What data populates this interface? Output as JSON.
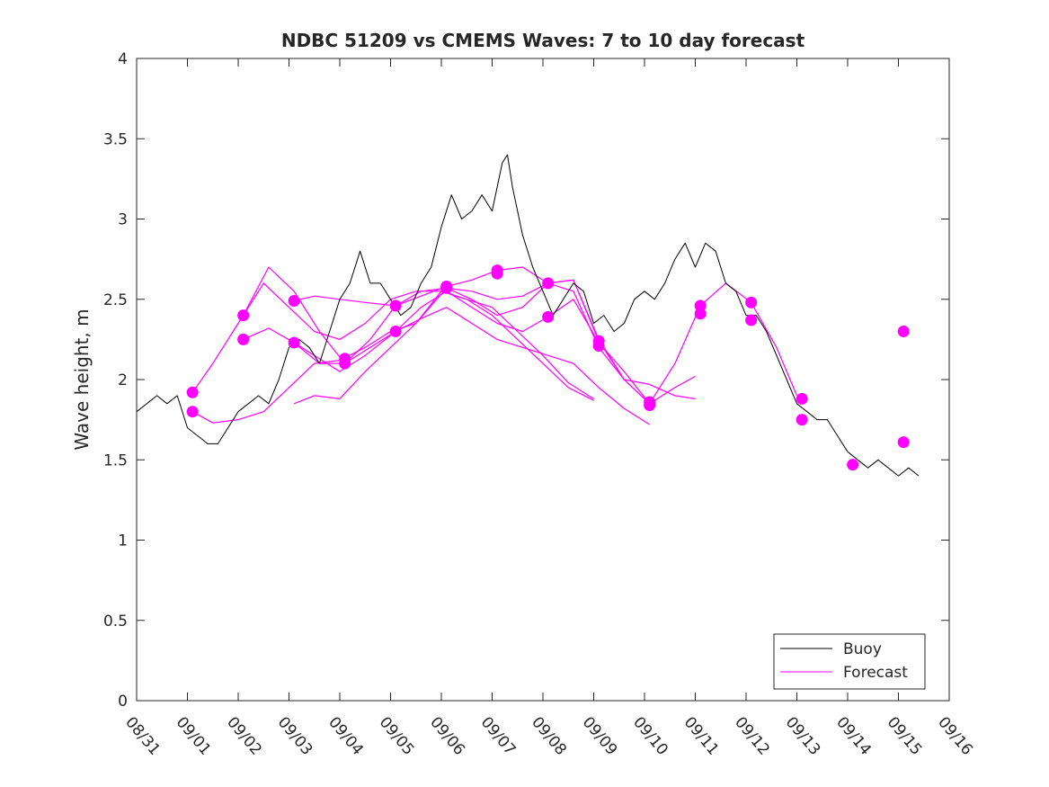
{
  "chart_data": {
    "type": "line",
    "title": "NDBC 51209 vs CMEMS Waves: 7 to 10 day forecast",
    "xlabel": "",
    "ylabel": "Wave height, m",
    "ylim": [
      0,
      4
    ],
    "yticks": [
      0,
      0.5,
      1,
      1.5,
      2,
      2.5,
      3,
      3.5,
      4
    ],
    "ytick_labels": [
      "0",
      "0.5",
      "1",
      "1.5",
      "2",
      "2.5",
      "3",
      "3.5",
      "4"
    ],
    "xlim_days": [
      0,
      16
    ],
    "xtick_labels": [
      "08/31",
      "09/01",
      "09/02",
      "09/03",
      "09/04",
      "09/05",
      "09/06",
      "09/07",
      "09/08",
      "09/09",
      "09/10",
      "09/11",
      "09/12",
      "09/13",
      "09/14",
      "09/15",
      "09/16"
    ],
    "legend": {
      "placement": "bottom-right",
      "entries": [
        {
          "label": "Buoy",
          "color": "#000000"
        },
        {
          "label": "Forecast",
          "color": "#ff00ff"
        }
      ]
    },
    "buoy": {
      "name": "Buoy",
      "color": "#000000",
      "x_days": [
        0.0,
        0.2,
        0.4,
        0.6,
        0.8,
        1.0,
        1.2,
        1.4,
        1.6,
        1.8,
        2.0,
        2.2,
        2.4,
        2.6,
        2.8,
        3.0,
        3.2,
        3.4,
        3.6,
        3.8,
        4.0,
        4.2,
        4.4,
        4.6,
        4.8,
        5.0,
        5.2,
        5.4,
        5.6,
        5.8,
        6.0,
        6.2,
        6.4,
        6.6,
        6.8,
        7.0,
        7.2,
        7.3,
        7.4,
        7.6,
        7.8,
        8.0,
        8.2,
        8.4,
        8.6,
        8.8,
        9.0,
        9.2,
        9.4,
        9.6,
        9.8,
        10.0,
        10.2,
        10.4,
        10.6,
        10.8,
        11.0,
        11.2,
        11.4,
        11.6,
        11.8,
        12.0,
        12.2,
        12.4,
        12.6,
        12.8,
        13.0,
        13.2,
        13.4,
        13.6,
        13.8,
        14.0,
        14.2,
        14.4,
        14.6,
        14.8,
        15.0,
        15.2,
        15.4
      ],
      "values": [
        1.8,
        1.85,
        1.9,
        1.85,
        1.9,
        1.7,
        1.65,
        1.6,
        1.6,
        1.7,
        1.8,
        1.85,
        1.9,
        1.85,
        2.0,
        2.2,
        2.25,
        2.2,
        2.1,
        2.3,
        2.5,
        2.6,
        2.8,
        2.6,
        2.6,
        2.5,
        2.4,
        2.45,
        2.6,
        2.7,
        2.95,
        3.15,
        3.0,
        3.05,
        3.15,
        3.05,
        3.35,
        3.4,
        3.2,
        2.9,
        2.7,
        2.55,
        2.4,
        2.5,
        2.6,
        2.55,
        2.35,
        2.4,
        2.3,
        2.35,
        2.5,
        2.55,
        2.5,
        2.6,
        2.75,
        2.85,
        2.7,
        2.85,
        2.8,
        2.6,
        2.55,
        2.4,
        2.4,
        2.3,
        2.15,
        2.0,
        1.85,
        1.8,
        1.75,
        1.75,
        1.65,
        1.55,
        1.5,
        1.45,
        1.5,
        1.45,
        1.4,
        1.45,
        1.4
      ]
    },
    "forecast": {
      "name": "Forecast",
      "color": "#ff00ff",
      "series": [
        {
          "x_days": [
            1.1,
            1.5,
            2.0,
            2.5,
            3.0,
            3.5,
            4.0,
            4.5,
            5.0,
            5.5,
            6.0,
            6.5,
            7.0,
            7.5,
            8.0,
            8.5,
            9.0
          ],
          "values": [
            1.92,
            2.1,
            2.35,
            2.6,
            2.45,
            2.3,
            2.25,
            2.35,
            2.5,
            2.55,
            2.55,
            2.5,
            2.4,
            2.25,
            2.1,
            1.95,
            1.87
          ]
        },
        {
          "x_days": [
            1.1,
            1.5,
            2.0,
            2.5,
            3.0,
            3.5,
            4.0,
            4.5,
            5.0,
            5.5,
            6.0,
            6.5,
            7.0,
            7.5,
            8.0,
            8.5,
            9.0
          ],
          "values": [
            1.8,
            1.73,
            1.75,
            1.8,
            1.95,
            2.1,
            2.12,
            2.2,
            2.3,
            2.35,
            2.55,
            2.5,
            2.45,
            2.3,
            2.15,
            1.98,
            1.88
          ]
        },
        {
          "x_days": [
            2.1,
            2.6,
            3.1,
            3.6,
            4.1,
            4.6,
            5.1,
            5.6,
            6.1,
            6.6,
            7.1,
            7.6,
            8.1,
            8.6,
            9.1,
            9.6,
            10.1
          ],
          "values": [
            2.4,
            2.7,
            2.55,
            2.3,
            2.1,
            2.25,
            2.46,
            2.55,
            2.57,
            2.55,
            2.5,
            2.52,
            2.6,
            2.62,
            2.25,
            2.0,
            1.85
          ]
        },
        {
          "x_days": [
            2.1,
            2.6,
            3.1,
            3.6,
            4.1,
            4.6,
            5.1,
            5.6,
            6.1,
            6.6,
            7.1,
            7.6,
            8.1,
            8.6,
            9.1,
            9.6,
            10.1
          ],
          "values": [
            2.25,
            2.32,
            2.23,
            2.1,
            2.1,
            2.2,
            2.3,
            2.38,
            2.45,
            2.35,
            2.25,
            2.2,
            2.15,
            2.1,
            1.95,
            1.82,
            1.72
          ]
        },
        {
          "x_days": [
            3.1,
            3.5,
            4.0,
            4.5,
            5.1,
            5.6,
            6.1,
            6.6,
            7.1,
            7.6,
            8.1,
            8.6,
            9.1,
            9.6,
            10.1,
            10.6,
            11.0
          ],
          "values": [
            2.49,
            2.52,
            2.5,
            2.48,
            2.46,
            2.52,
            2.58,
            2.62,
            2.68,
            2.7,
            2.6,
            2.55,
            2.2,
            2.0,
            1.97,
            1.9,
            1.88
          ]
        },
        {
          "x_days": [
            3.1,
            3.5,
            4.0,
            4.5,
            5.1,
            5.6,
            6.1,
            6.6,
            7.1,
            7.6,
            8.1,
            8.6,
            9.1,
            9.6,
            10.1,
            10.6,
            11.0
          ],
          "values": [
            2.23,
            2.15,
            2.05,
            2.15,
            2.3,
            2.45,
            2.55,
            2.45,
            2.35,
            2.3,
            2.39,
            2.5,
            2.23,
            2.05,
            1.85,
            1.95,
            2.02
          ]
        },
        {
          "x_days": [
            3.1,
            3.5,
            4.0,
            4.5,
            5.0,
            5.5,
            6.1,
            6.6,
            7.1,
            7.6,
            8.1,
            8.6,
            9.1,
            9.6,
            10.1,
            10.6,
            11.1,
            11.6,
            12.1,
            12.6,
            13.0
          ],
          "values": [
            1.85,
            1.9,
            1.88,
            2.05,
            2.2,
            2.35,
            2.57,
            2.5,
            2.4,
            2.45,
            2.6,
            2.62,
            2.24,
            2.0,
            1.85,
            2.1,
            2.46,
            2.6,
            2.48,
            2.2,
            1.9
          ]
        }
      ],
      "markers": [
        {
          "x": 1.1,
          "y": 1.92
        },
        {
          "x": 1.1,
          "y": 1.8
        },
        {
          "x": 2.1,
          "y": 2.4
        },
        {
          "x": 2.1,
          "y": 2.25
        },
        {
          "x": 3.1,
          "y": 2.49
        },
        {
          "x": 3.1,
          "y": 2.23
        },
        {
          "x": 4.1,
          "y": 2.13
        },
        {
          "x": 4.1,
          "y": 2.1
        },
        {
          "x": 5.1,
          "y": 2.46
        },
        {
          "x": 5.1,
          "y": 2.3
        },
        {
          "x": 6.1,
          "y": 2.58
        },
        {
          "x": 6.1,
          "y": 2.57
        },
        {
          "x": 7.1,
          "y": 2.68
        },
        {
          "x": 7.1,
          "y": 2.66
        },
        {
          "x": 8.1,
          "y": 2.6
        },
        {
          "x": 8.1,
          "y": 2.39
        },
        {
          "x": 9.1,
          "y": 2.24
        },
        {
          "x": 9.1,
          "y": 2.21
        },
        {
          "x": 10.1,
          "y": 1.86
        },
        {
          "x": 10.1,
          "y": 1.84
        },
        {
          "x": 11.1,
          "y": 2.46
        },
        {
          "x": 11.1,
          "y": 2.41
        },
        {
          "x": 12.1,
          "y": 2.48
        },
        {
          "x": 12.1,
          "y": 2.37
        },
        {
          "x": 13.1,
          "y": 1.88
        },
        {
          "x": 13.1,
          "y": 1.75
        },
        {
          "x": 14.1,
          "y": 1.47
        },
        {
          "x": 15.1,
          "y": 2.3
        },
        {
          "x": 15.1,
          "y": 1.61
        }
      ]
    }
  }
}
